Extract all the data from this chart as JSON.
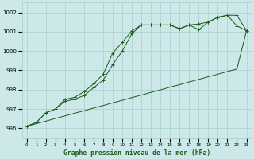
{
  "title": "Graphe pression niveau de la mer (hPa)",
  "ylabel_values": [
    996,
    997,
    998,
    999,
    1000,
    1001,
    1002
  ],
  "ylim": [
    995.5,
    1002.5
  ],
  "xlim": [
    -0.5,
    23.5
  ],
  "xticks": [
    0,
    1,
    2,
    3,
    4,
    5,
    6,
    7,
    8,
    9,
    10,
    11,
    12,
    13,
    14,
    15,
    16,
    17,
    18,
    19,
    20,
    21,
    22,
    23
  ],
  "background_color": "#cce8e8",
  "grid_color": "#aacece",
  "line_color": "#1a5c1a",
  "line_upper": [
    996.1,
    996.3,
    996.8,
    997.0,
    997.5,
    997.6,
    997.9,
    998.3,
    998.8,
    999.9,
    1000.45,
    1001.05,
    1001.35,
    1001.35,
    1001.35,
    1001.35,
    1001.15,
    1001.35,
    1001.4,
    1001.5,
    1001.75,
    1001.85,
    1001.85,
    1001.05
  ],
  "line_lower": [
    996.1,
    996.3,
    996.8,
    997.0,
    997.4,
    997.5,
    997.7,
    998.1,
    998.5,
    999.3,
    1000.0,
    1000.9,
    1001.35,
    1001.35,
    1001.35,
    1001.35,
    1001.15,
    1001.35,
    1001.1,
    1001.5,
    1001.75,
    1001.85,
    1001.3,
    1001.05
  ],
  "line_straight": [
    996.1,
    996.24,
    996.37,
    996.51,
    996.64,
    996.78,
    996.91,
    997.05,
    997.18,
    997.32,
    997.45,
    997.59,
    997.72,
    997.86,
    997.99,
    998.13,
    998.26,
    998.4,
    998.53,
    998.67,
    998.8,
    998.94,
    999.07,
    1001.05
  ]
}
